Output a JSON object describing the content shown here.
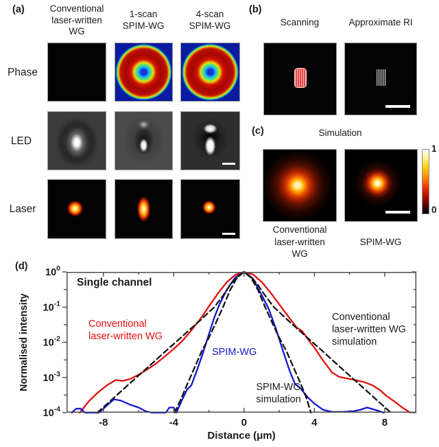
{
  "panel_a": {
    "label": "(a)",
    "columns": [
      {
        "header": [
          "Conventional",
          "laser-written",
          "WG"
        ]
      },
      {
        "header": [
          "1-scan",
          "SPIM-WG"
        ]
      },
      {
        "header": [
          "4-scan",
          "SPIM-WG"
        ]
      }
    ],
    "rows": [
      "Phase",
      "LED",
      "Laser"
    ]
  },
  "panel_b": {
    "label": "(b)",
    "left_title": "Scanning",
    "right_title": "Approximate RI"
  },
  "panel_c": {
    "label": "(c)",
    "title": "Simulation",
    "left_caption": [
      "Conventional",
      "laser-written",
      "WG"
    ],
    "right_caption": "SPIM-WG",
    "colorbar": {
      "max": "1",
      "min": "0"
    }
  },
  "panel_d": {
    "label": "(d)"
  },
  "colors": {
    "red_curve": "#e31010",
    "blue_curve": "#1616cf",
    "simulation_dashed": "#141414",
    "axis": "#4d4d4d",
    "colorbar_top": "#ffffff",
    "colorbar_bottom": "#000000"
  },
  "chart_data": {
    "type": "line",
    "title": "Single channel",
    "xlabel": "Distance (μm)",
    "ylabel": "Normalised intensity",
    "xlim": [
      -10.1,
      9.8
    ],
    "ylim": [
      0.0001,
      1
    ],
    "yscale": "log",
    "grid": false,
    "x_major_ticks": [
      -8,
      -4,
      0,
      4,
      8
    ],
    "x_minor_ticks": [
      -6,
      -2,
      2,
      6
    ],
    "y_tick_exponents": [
      "0",
      "-1",
      "-2",
      "-3",
      "-4"
    ],
    "annotations": {
      "red_label": [
        "Conventional",
        "laser-written WG"
      ],
      "blue_label": "SPIM-WG",
      "spim_sim_label": [
        "SPIM-WG",
        "simulation"
      ],
      "conv_sim_label": [
        "Conventional",
        "laser-written WG",
        "simulation"
      ]
    },
    "series": [
      {
        "name": "Conventional laser-written WG",
        "color": "#e31010",
        "style": "solid",
        "x": [
          -9.35,
          -8.8,
          -8.3,
          -7.8,
          -7.3,
          -6.9,
          -6.5,
          -6.0,
          -5.5,
          -5.0,
          -4.5,
          -4.0,
          -3.5,
          -3.0,
          -2.5,
          -2.0,
          -1.5,
          -1.0,
          -0.5,
          0,
          0.5,
          1.0,
          1.5,
          2.0,
          2.5,
          3.0,
          3.3,
          3.7,
          4.0,
          4.5,
          5.0,
          5.4,
          5.8,
          6.3,
          6.8,
          7.3,
          7.7,
          8.1,
          8.6,
          9.0,
          9.45
        ],
        "y": [
          0.0001,
          0.00022,
          0.00038,
          0.0006,
          0.00085,
          0.0008,
          0.0009,
          0.0012,
          0.0017,
          0.0025,
          0.004,
          0.0065,
          0.011,
          0.022,
          0.045,
          0.105,
          0.24,
          0.5,
          0.83,
          1.0,
          0.85,
          0.52,
          0.26,
          0.12,
          0.055,
          0.026,
          0.021,
          0.011,
          0.007,
          0.003,
          0.0014,
          0.00105,
          0.00095,
          0.00085,
          0.00075,
          0.0006,
          0.00045,
          0.0003,
          0.0002,
          0.00014,
          0.0001
        ]
      },
      {
        "name": "SPIM-WG",
        "color": "#1616cf",
        "style": "solid",
        "x": [
          -9.8,
          -9.55,
          -9.3,
          -9.05,
          -8.25,
          -7.8,
          -7.4,
          -7.0,
          -6.5,
          -6.0,
          -5.6,
          -5.25,
          -4.45,
          -4.25,
          -4.0,
          -3.85,
          -3.55,
          -3.25,
          -3.0,
          -2.7,
          -2.4,
          -2.0,
          -1.7,
          -1.4,
          -1.0,
          -0.5,
          0,
          0.5,
          1.0,
          1.4,
          1.8,
          2.2,
          2.6,
          2.9,
          3.2,
          3.6,
          4.0,
          4.5,
          5.0,
          5.6,
          6.2,
          6.6,
          7.0,
          7.45,
          7.95
        ],
        "y": [
          0.0001,
          0.00013,
          0.00013,
          0.0001,
          0.0001,
          0.00016,
          0.00024,
          0.00022,
          0.00017,
          0.00014,
          0.00011,
          0.0001,
          0.0001,
          0.00014,
          0.00014,
          0.0001,
          0.00022,
          0.00045,
          0.0006,
          0.0015,
          0.004,
          0.017,
          0.05,
          0.12,
          0.3,
          0.7,
          1.0,
          0.65,
          0.22,
          0.09,
          0.025,
          0.006,
          0.0015,
          0.00065,
          0.0005,
          0.00028,
          0.00018,
          0.00012,
          0.000105,
          0.000105,
          0.00011,
          0.00012,
          0.00014,
          0.00012,
          0.0001
        ]
      },
      {
        "name": "Conventional laser-written WG simulation",
        "color": "#141414",
        "style": "dashed",
        "x": [
          -8.35,
          -7.5,
          -6.5,
          -5.5,
          -4.5,
          -3.5,
          -2.5,
          -1.7,
          -1.2,
          -0.8,
          -0.4,
          0,
          0.4,
          0.8,
          1.2,
          1.7,
          2.5,
          3.5,
          4.5,
          5.5,
          6.5,
          7.5,
          8.35
        ],
        "y": [
          0.0001,
          0.00024,
          0.00068,
          0.0019,
          0.0054,
          0.015,
          0.042,
          0.1,
          0.21,
          0.42,
          0.72,
          1.0,
          0.72,
          0.42,
          0.21,
          0.1,
          0.042,
          0.015,
          0.0054,
          0.0019,
          0.00068,
          0.00024,
          0.0001
        ]
      },
      {
        "name": "SPIM-WG simulation",
        "color": "#141414",
        "style": "dashed",
        "x": [
          -3.95,
          -3.6,
          -3.2,
          -2.8,
          -2.4,
          -2.0,
          -1.6,
          -1.2,
          -0.8,
          -0.4,
          0,
          0.4,
          0.8,
          1.2,
          1.6,
          2.0,
          2.4,
          2.8,
          3.2,
          3.55,
          3.8
        ],
        "y": [
          0.0001,
          0.00024,
          0.0007,
          0.002,
          0.0057,
          0.0135,
          0.036,
          0.1,
          0.3,
          0.68,
          1.0,
          0.68,
          0.3,
          0.1,
          0.036,
          0.0135,
          0.0057,
          0.002,
          0.0007,
          0.00026,
          0.0001
        ]
      }
    ]
  }
}
